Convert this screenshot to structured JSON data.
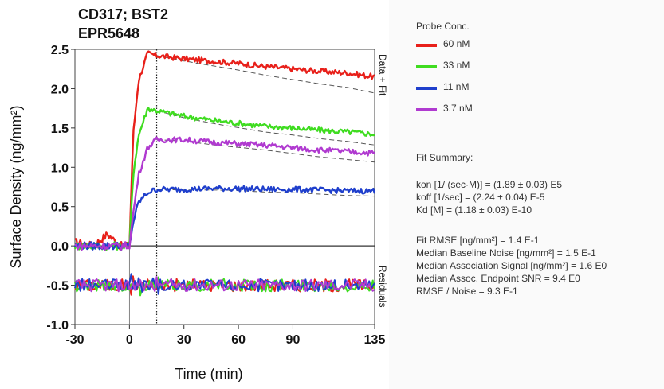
{
  "chart_data": {
    "type": "line",
    "title": "CD317; BST2",
    "subtitle": "EPR5648",
    "xlabel": "Time (min)",
    "ylabel": "Surface Density (ng/mm²)",
    "xlim": [
      -30,
      135
    ],
    "ylim": [
      -1.0,
      2.5
    ],
    "x_ticks": [
      -30,
      0,
      30,
      60,
      90,
      135
    ],
    "x_tick_labels": [
      "-30",
      "0",
      "30",
      "60",
      "90",
      "135"
    ],
    "y_ticks": [
      -1.0,
      -0.5,
      0.0,
      0.5,
      1.0,
      1.5,
      2.0,
      2.5
    ],
    "y_tick_labels": [
      "-1.0",
      "-0.5",
      "0.0",
      "0.5",
      "1.0",
      "1.5",
      "2.0",
      "2.5"
    ],
    "right_labels": {
      "top": "Data + Fit",
      "bottom": "Residuals"
    },
    "injection_end_x": 15,
    "grid": false,
    "series": [
      {
        "name": "60 nM",
        "color": "#e8201a",
        "x": [
          -30,
          -20,
          -12,
          -5,
          0,
          2,
          5,
          10,
          15,
          30,
          45,
          60,
          75,
          90,
          105,
          120,
          135
        ],
        "y": [
          0.05,
          0.0,
          0.15,
          0.0,
          0.0,
          1.4,
          2.1,
          2.45,
          2.42,
          2.38,
          2.35,
          2.32,
          2.28,
          2.25,
          2.22,
          2.2,
          2.15
        ]
      },
      {
        "name": "33 nM",
        "color": "#3fdc20",
        "x": [
          -30,
          -20,
          -10,
          0,
          2,
          5,
          10,
          15,
          30,
          45,
          60,
          75,
          90,
          105,
          120,
          135
        ],
        "y": [
          0.0,
          0.0,
          0.0,
          0.0,
          0.9,
          1.4,
          1.75,
          1.72,
          1.65,
          1.6,
          1.56,
          1.52,
          1.5,
          1.47,
          1.45,
          1.42
        ]
      },
      {
        "name": "11 nM",
        "color": "#1f3fcc",
        "x": [
          -30,
          -20,
          -10,
          0,
          2,
          5,
          10,
          15,
          30,
          45,
          60,
          75,
          90,
          105,
          120,
          135
        ],
        "y": [
          0.0,
          0.0,
          0.0,
          0.0,
          0.3,
          0.55,
          0.68,
          0.72,
          0.72,
          0.73,
          0.73,
          0.72,
          0.72,
          0.71,
          0.7,
          0.7
        ]
      },
      {
        "name": "3.7 nM",
        "color": "#b03ad0",
        "x": [
          -30,
          -20,
          -10,
          0,
          2,
          5,
          10,
          15,
          30,
          45,
          60,
          75,
          90,
          105,
          120,
          135
        ],
        "y": [
          0.0,
          0.0,
          0.0,
          0.0,
          0.4,
          0.9,
          1.25,
          1.35,
          1.35,
          1.32,
          1.3,
          1.28,
          1.25,
          1.22,
          1.2,
          1.18
        ]
      }
    ]
  },
  "legend": {
    "header": "Probe Conc.",
    "items": [
      {
        "label": "60 nM",
        "color": "#e8201a"
      },
      {
        "label": "33 nM",
        "color": "#3fdc20"
      },
      {
        "label": "11 nM",
        "color": "#1f3fcc"
      },
      {
        "label": "3.7 nM",
        "color": "#b03ad0"
      }
    ]
  },
  "fit_summary": {
    "header": "Fit Summary:",
    "kinetics": [
      "kon  [1/ (sec·M)]  =   (1.89 ± 0.03) E5",
      "koff  [1/sec]  =   (2.24 ± 0.04) E-5",
      "Kd  [M]  =   (1.18 ± 0.03) E-10"
    ],
    "quality": [
      "Fit RMSE  [ng/mm²]  =   1.4 E-1",
      "Median Baseline Noise [ng/mm²]  =   1.5 E-1",
      "Median Association Signal [ng/mm²]  =   1.6 E0",
      "Median Assoc. Endpoint SNR  =   9.4 E0",
      "RMSE / Noise  =   9.3 E-1"
    ]
  }
}
